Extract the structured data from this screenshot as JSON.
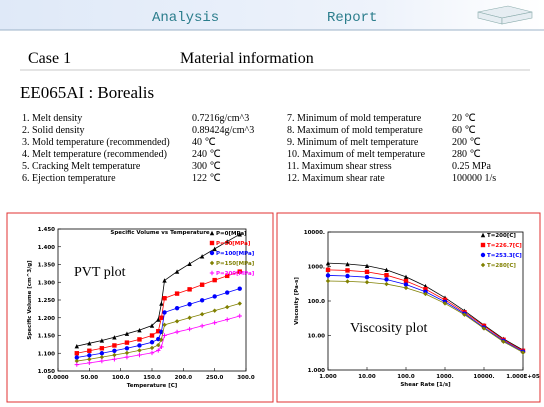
{
  "header": {
    "left": "Analysis",
    "right": "Report"
  },
  "section": {
    "case": "Case 1",
    "title": "Material information"
  },
  "material": "EE065AI : Borealis",
  "properties": [
    {
      "label": "1. Melt density",
      "value": "0.7216g/cm^3"
    },
    {
      "label": "2. Solid density",
      "value": "0.89424g/cm^3"
    },
    {
      "label": "3. Mold temperature (recommended)",
      "value": "40 ℃"
    },
    {
      "label": "4. Melt  temperature (recommended)",
      "value": "240 ℃"
    },
    {
      "label": "5. Cracking  Melt temperature",
      "value": "300 ℃"
    },
    {
      "label": "6. Ejection temperature",
      "value": "122 ℃"
    },
    {
      "label": "7. Minimum of mold temperature",
      "value": "20 ℃"
    },
    {
      "label": "8. Maximum of mold temperature",
      "value": "60 ℃"
    },
    {
      "label": "9. Minimum of melt temperature",
      "value": "200 ℃"
    },
    {
      "label": "10. Maximum of melt temperature",
      "value": "280 ℃"
    },
    {
      "label": "11. Maximum shear stress",
      "value": "0.25   MPa"
    },
    {
      "label": "12. Maximum  shear rate",
      "value": "100000   1/s"
    }
  ],
  "chart_data": [
    {
      "type": "line",
      "title": "Specific Volume vs Temperature",
      "annotation": "PVT plot",
      "x_label": "Temperature [C]",
      "y_label": "Specific Volume [cm^3/g]",
      "x": [
        30,
        50,
        70,
        90,
        110,
        130,
        150,
        160,
        165,
        170,
        190,
        210,
        230,
        250,
        270,
        290
      ],
      "series": [
        {
          "name": "P=0[MPa]",
          "color": "#000000",
          "marker": "triangle",
          "values": [
            1.12,
            1.128,
            1.136,
            1.145,
            1.155,
            1.165,
            1.178,
            1.195,
            1.24,
            1.305,
            1.33,
            1.352,
            1.373,
            1.394,
            1.415,
            1.435
          ]
        },
        {
          "name": "P=50[MPa]",
          "color": "#ff0000",
          "marker": "square",
          "values": [
            1.1,
            1.107,
            1.114,
            1.122,
            1.13,
            1.139,
            1.15,
            1.162,
            1.2,
            1.255,
            1.268,
            1.28,
            1.293,
            1.306,
            1.318,
            1.33
          ]
        },
        {
          "name": "P=100[MPa]",
          "color": "#0000ff",
          "marker": "circle",
          "values": [
            1.088,
            1.094,
            1.1,
            1.107,
            1.114,
            1.122,
            1.131,
            1.14,
            1.16,
            1.215,
            1.227,
            1.238,
            1.249,
            1.26,
            1.271,
            1.282
          ]
        },
        {
          "name": "P=150[MPa]",
          "color": "#808000",
          "marker": "diamond",
          "values": [
            1.078,
            1.083,
            1.089,
            1.095,
            1.101,
            1.108,
            1.115,
            1.123,
            1.138,
            1.18,
            1.19,
            1.2,
            1.21,
            1.22,
            1.23,
            1.24
          ]
        },
        {
          "name": "P=200[MPa]",
          "color": "#ff00ff",
          "marker": "plus",
          "values": [
            1.068,
            1.073,
            1.078,
            1.083,
            1.089,
            1.095,
            1.101,
            1.108,
            1.118,
            1.15,
            1.16,
            1.168,
            1.177,
            1.186,
            1.195,
            1.205
          ]
        }
      ],
      "xlim": [
        0,
        300
      ],
      "xticks": [
        {
          "value": 0,
          "label": "0.0000"
        },
        {
          "value": 50,
          "label": "50.00"
        },
        {
          "value": 100,
          "label": "100.0"
        },
        {
          "value": 150,
          "label": "150.0"
        },
        {
          "value": 200,
          "label": "200.0"
        },
        {
          "value": 250,
          "label": "250.0"
        },
        {
          "value": 300,
          "label": "300.0"
        }
      ],
      "ylim": [
        1.05,
        1.45
      ],
      "yticks": [
        {
          "value": 1.05,
          "label": "1.050"
        },
        {
          "value": 1.1,
          "label": "1.100"
        },
        {
          "value": 1.15,
          "label": "1.150"
        },
        {
          "value": 1.2,
          "label": "1.200"
        },
        {
          "value": 1.25,
          "label": "1.250"
        },
        {
          "value": 1.3,
          "label": "1.300"
        },
        {
          "value": 1.35,
          "label": "1.350"
        },
        {
          "value": 1.4,
          "label": "1.400"
        },
        {
          "value": 1.45,
          "label": "1.450"
        }
      ]
    },
    {
      "type": "line",
      "annotation": "Viscosity plot",
      "log_scale": true,
      "x_label": "Shear Rate [1/s]",
      "y_label": "Viscosity [Pa-s]",
      "x": [
        1,
        3.162,
        10,
        31.62,
        100,
        316.2,
        1000,
        3162,
        10000,
        31620,
        100000
      ],
      "series": [
        {
          "name": "T=200[C]",
          "color": "#000000",
          "marker": "triangle",
          "values": [
            1250,
            1180,
            1050,
            800,
            500,
            270,
            125,
            52,
            20,
            8,
            3.8
          ]
        },
        {
          "name": "T=226.7[C]",
          "color": "#ff0000",
          "marker": "square",
          "values": [
            800,
            770,
            700,
            560,
            380,
            220,
            108,
            47,
            19,
            7.5,
            3.6
          ]
        },
        {
          "name": "T=253.3[C]",
          "color": "#0000ff",
          "marker": "circle",
          "values": [
            550,
            530,
            490,
            420,
            300,
            185,
            95,
            43,
            17,
            7,
            3.4
          ]
        },
        {
          "name": "T=280[C]",
          "color": "#808000",
          "marker": "diamond",
          "values": [
            380,
            370,
            350,
            310,
            240,
            160,
            85,
            40,
            16,
            6.6,
            3.2
          ]
        }
      ],
      "xlim": [
        1,
        100000
      ],
      "xticks": [
        {
          "value": 1,
          "label": "1.000"
        },
        {
          "value": 10,
          "label": "10.00"
        },
        {
          "value": 100,
          "label": "100.0"
        },
        {
          "value": 1000,
          "label": "1000."
        },
        {
          "value": 10000,
          "label": "10000."
        },
        {
          "value": 100000,
          "label": "1.000E+05"
        }
      ],
      "ylim": [
        1,
        10000
      ],
      "yticks": [
        {
          "value": 1,
          "label": "1.000"
        },
        {
          "value": 10,
          "label": "10.00"
        },
        {
          "value": 100,
          "label": "100.0"
        },
        {
          "value": 1000,
          "label": "1000."
        },
        {
          "value": 10000,
          "label": "10000."
        }
      ]
    }
  ]
}
